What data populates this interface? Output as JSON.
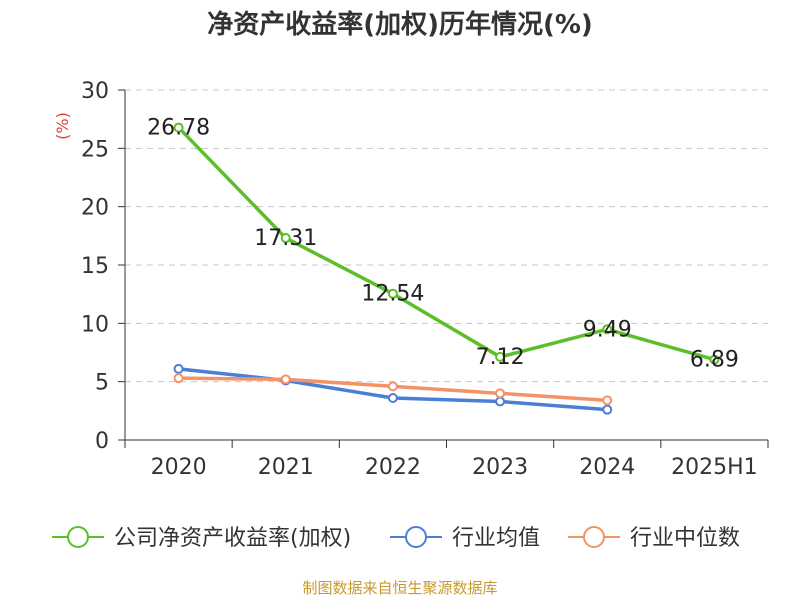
{
  "chart_data": {
    "type": "line",
    "title": "净资产收益率(加权)历年情况(%)",
    "ylabel": "(%)",
    "categories": [
      "2020",
      "2021",
      "2022",
      "2023",
      "2024",
      "2025H1"
    ],
    "ylim": [
      0,
      30
    ],
    "yticks": [
      0,
      5,
      10,
      15,
      20,
      25,
      30
    ],
    "grid": true,
    "legend_position": "bottom",
    "series": [
      {
        "name": "公司净资产收益率(加权)",
        "color": "#5cbf2a",
        "values": [
          26.78,
          17.31,
          12.54,
          7.12,
          9.49,
          6.89
        ],
        "labels": [
          "26.78",
          "17.31",
          "12.54",
          "7.12",
          "9.49",
          "6.89"
        ]
      },
      {
        "name": "行业均值",
        "color": "#4a7fd8",
        "values": [
          6.1,
          5.1,
          3.6,
          3.3,
          2.6,
          null
        ]
      },
      {
        "name": "行业中位数",
        "color": "#f39267",
        "values": [
          5.3,
          5.2,
          4.6,
          4.0,
          3.4,
          null
        ]
      }
    ]
  },
  "source": "制图数据来自恒生聚源数据库"
}
